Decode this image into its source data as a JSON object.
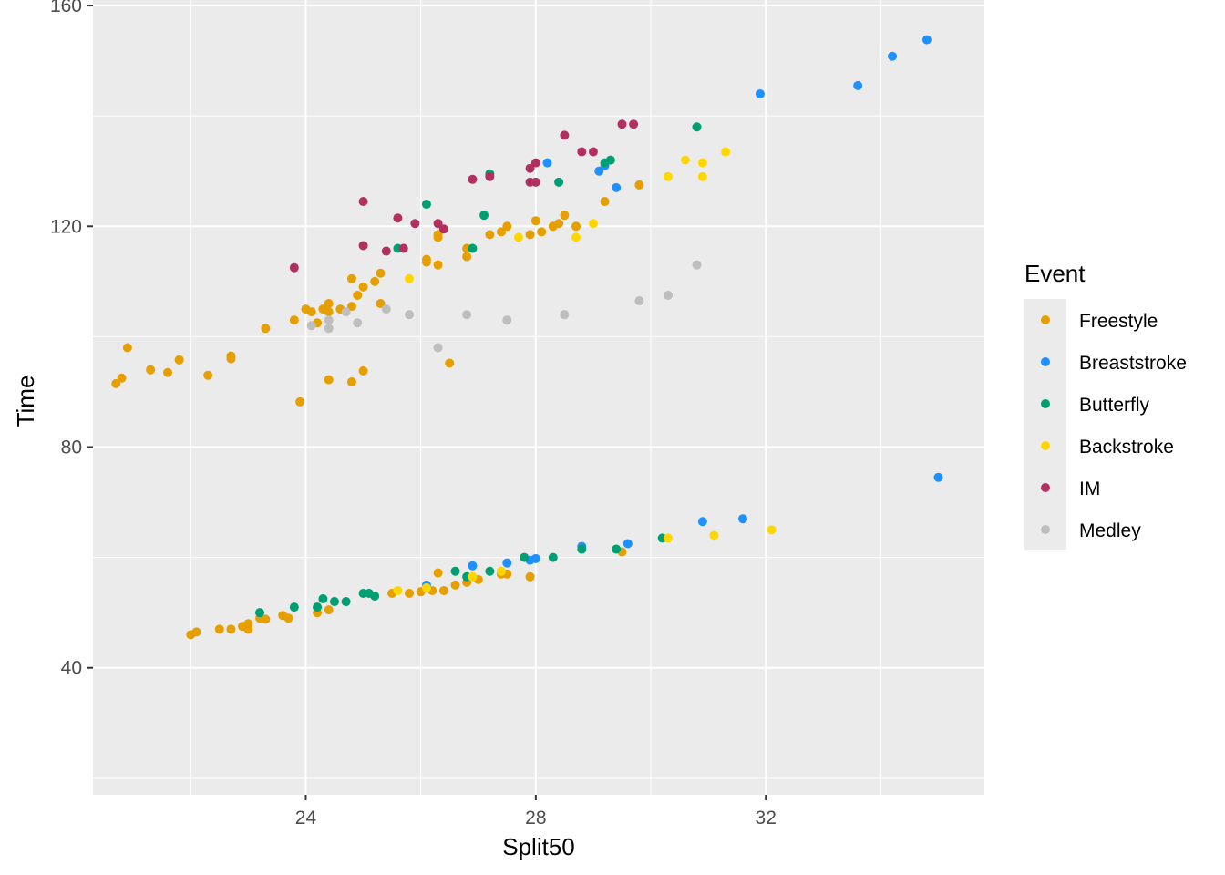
{
  "chart_data": {
    "type": "scatter",
    "title": "",
    "xlabel": "Split50",
    "ylabel": "Time",
    "xlim": [
      20.3,
      35.8
    ],
    "ylim": [
      17,
      161
    ],
    "x_ticks": [
      24,
      28,
      32
    ],
    "x_tick_labels": [
      "24",
      "28",
      "32"
    ],
    "x_minor": [
      22,
      26,
      30,
      34
    ],
    "y_ticks": [
      40,
      80,
      120,
      160
    ],
    "y_tick_labels": [
      "40",
      "80",
      "120",
      "160"
    ],
    "y_minor": [
      20,
      60,
      100,
      140
    ],
    "grid": true,
    "panel_background": "#ebebeb",
    "grid_color": "#ffffff",
    "legend_title": "Event",
    "legend_position": "right",
    "series": [
      {
        "name": "Freestyle",
        "color": "#E69F00",
        "points": [
          [
            20.7,
            91.5
          ],
          [
            20.8,
            92.5
          ],
          [
            20.9,
            98
          ],
          [
            21.3,
            94
          ],
          [
            21.6,
            93.5
          ],
          [
            21.8,
            95.8
          ],
          [
            22.3,
            93
          ],
          [
            22.7,
            96
          ],
          [
            22.7,
            96.5
          ],
          [
            23.3,
            101.5
          ],
          [
            23.8,
            103
          ],
          [
            23.9,
            88.2
          ],
          [
            24.0,
            105
          ],
          [
            24.1,
            104.5
          ],
          [
            24.2,
            102.5
          ],
          [
            24.3,
            105
          ],
          [
            24.4,
            104.5
          ],
          [
            24.4,
            106
          ],
          [
            24.6,
            105
          ],
          [
            24.8,
            110.5
          ],
          [
            24.8,
            105.5
          ],
          [
            24.4,
            92.2
          ],
          [
            24.9,
            107.5
          ],
          [
            25.0,
            109
          ],
          [
            25.2,
            110
          ],
          [
            25.3,
            111.5
          ],
          [
            25.3,
            106
          ],
          [
            24.8,
            91.8
          ],
          [
            25.0,
            93.8
          ],
          [
            26.1,
            114
          ],
          [
            26.1,
            113.5
          ],
          [
            26.3,
            113
          ],
          [
            26.3,
            118
          ],
          [
            26.3,
            118.5
          ],
          [
            26.5,
            95.2
          ],
          [
            26.8,
            114.5
          ],
          [
            26.8,
            116
          ],
          [
            27.2,
            118.5
          ],
          [
            27.4,
            119
          ],
          [
            27.5,
            120
          ],
          [
            27.9,
            118.5
          ],
          [
            28.0,
            121
          ],
          [
            28.1,
            119
          ],
          [
            28.3,
            120
          ],
          [
            28.4,
            120.5
          ],
          [
            28.5,
            122
          ],
          [
            28.7,
            120
          ],
          [
            29.2,
            124.5
          ],
          [
            29.8,
            127.5
          ],
          [
            22.0,
            46
          ],
          [
            22.1,
            46.5
          ],
          [
            22.5,
            47
          ],
          [
            22.7,
            47
          ],
          [
            22.9,
            47.5
          ],
          [
            23.0,
            47
          ],
          [
            23.0,
            48
          ],
          [
            23.2,
            49
          ],
          [
            23.3,
            48.8
          ],
          [
            23.6,
            49.5
          ],
          [
            23.7,
            49
          ],
          [
            24.2,
            51
          ],
          [
            24.2,
            50
          ],
          [
            24.4,
            50.5
          ],
          [
            25.5,
            53.5
          ],
          [
            25.8,
            53.5
          ],
          [
            26.0,
            53.8
          ],
          [
            26.1,
            54.5
          ],
          [
            26.2,
            54
          ],
          [
            26.4,
            54
          ],
          [
            26.6,
            55
          ],
          [
            26.8,
            55.5
          ],
          [
            27.0,
            56
          ],
          [
            27.4,
            57
          ],
          [
            27.5,
            57
          ],
          [
            27.9,
            56.5
          ],
          [
            26.3,
            57.2
          ],
          [
            29.5,
            61
          ]
        ]
      },
      {
        "name": "Breaststroke",
        "color": "#1E90FF",
        "points": [
          [
            28.2,
            131.5
          ],
          [
            29.1,
            130
          ],
          [
            29.2,
            131
          ],
          [
            29.4,
            127
          ],
          [
            31.9,
            144
          ],
          [
            33.6,
            145.5
          ],
          [
            34.2,
            150.8
          ],
          [
            34.8,
            153.8
          ],
          [
            26.1,
            55
          ],
          [
            26.9,
            58.5
          ],
          [
            27.5,
            59
          ],
          [
            27.9,
            59.5
          ],
          [
            28.0,
            59.8
          ],
          [
            28.8,
            62
          ],
          [
            29.6,
            62.5
          ],
          [
            30.9,
            66.5
          ],
          [
            31.6,
            67
          ],
          [
            35.0,
            74.5
          ]
        ]
      },
      {
        "name": "Butterfly",
        "color": "#009E73",
        "points": [
          [
            25.6,
            116
          ],
          [
            26.1,
            124
          ],
          [
            26.9,
            116
          ],
          [
            27.1,
            122
          ],
          [
            27.2,
            129.5
          ],
          [
            28.4,
            128
          ],
          [
            29.2,
            131.5
          ],
          [
            29.3,
            132
          ],
          [
            30.8,
            138
          ],
          [
            23.2,
            50
          ],
          [
            23.8,
            51
          ],
          [
            24.2,
            51
          ],
          [
            24.3,
            52.5
          ],
          [
            24.5,
            52
          ],
          [
            24.7,
            52
          ],
          [
            25.0,
            53.5
          ],
          [
            25.1,
            53.5
          ],
          [
            25.2,
            53
          ],
          [
            26.6,
            57.5
          ],
          [
            26.8,
            56.5
          ],
          [
            27.2,
            57.5
          ],
          [
            27.8,
            60
          ],
          [
            28.3,
            60
          ],
          [
            28.8,
            61.5
          ],
          [
            29.4,
            61.5
          ],
          [
            30.2,
            63.5
          ]
        ]
      },
      {
        "name": "Backstroke",
        "color": "#FFD700",
        "points": [
          [
            25.8,
            110.5
          ],
          [
            27.7,
            118
          ],
          [
            28.7,
            118
          ],
          [
            29.0,
            120.5
          ],
          [
            30.3,
            129
          ],
          [
            30.6,
            132
          ],
          [
            30.9,
            129
          ],
          [
            30.9,
            131.5
          ],
          [
            31.3,
            133.5
          ],
          [
            25.6,
            54
          ],
          [
            26.1,
            54.5
          ],
          [
            26.9,
            56.5
          ],
          [
            27.4,
            57.5
          ],
          [
            30.3,
            63.5
          ],
          [
            31.1,
            64
          ],
          [
            32.1,
            65
          ]
        ]
      },
      {
        "name": "IM",
        "color": "#B03060",
        "points": [
          [
            23.8,
            112.5
          ],
          [
            25.0,
            124.5
          ],
          [
            25.0,
            116.5
          ],
          [
            25.4,
            115.5
          ],
          [
            25.6,
            121.5
          ],
          [
            25.7,
            116
          ],
          [
            25.9,
            120.5
          ],
          [
            26.3,
            120.5
          ],
          [
            26.4,
            119.5
          ],
          [
            26.9,
            128.5
          ],
          [
            27.2,
            129
          ],
          [
            27.9,
            128
          ],
          [
            27.9,
            130.5
          ],
          [
            28.0,
            131.5
          ],
          [
            28.0,
            128
          ],
          [
            28.5,
            136.5
          ],
          [
            28.8,
            133.5
          ],
          [
            29.0,
            133.5
          ],
          [
            29.5,
            138.5
          ],
          [
            29.7,
            138.5
          ]
        ]
      },
      {
        "name": "Medley",
        "color": "#BEBEBE",
        "points": [
          [
            24.1,
            102
          ],
          [
            24.4,
            101.5
          ],
          [
            24.4,
            103
          ],
          [
            24.7,
            104.5
          ],
          [
            24.9,
            102.5
          ],
          [
            25.4,
            105
          ],
          [
            25.8,
            104
          ],
          [
            26.3,
            98
          ],
          [
            26.8,
            104
          ],
          [
            27.5,
            103
          ],
          [
            28.5,
            104
          ],
          [
            29.8,
            106.5
          ],
          [
            30.3,
            107.5
          ],
          [
            30.8,
            113
          ]
        ]
      }
    ]
  }
}
